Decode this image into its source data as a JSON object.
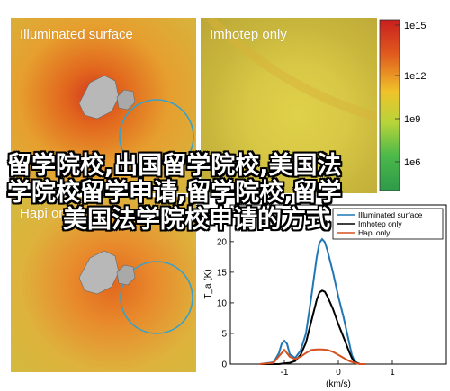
{
  "panels": {
    "top_left_title": "Illuminated surface",
    "top_right_title": "Imhotep only",
    "bottom_left_title": "Hapi only"
  },
  "colorbar": {
    "tick_labels": [
      "1e15",
      "1e12",
      "1e9",
      "1e6"
    ]
  },
  "overlay_text": {
    "line1": "留学院校,出国留学院校,美国法",
    "line2": "学院校留学申请,留学院校,留学",
    "line3": "美国法学院校申请的方式"
  },
  "chart_data": {
    "type": "line",
    "xlabel": "(km/s)",
    "ylabel": "T_a (K)",
    "xticks": [
      "-1",
      "0",
      "1"
    ],
    "yticks": [
      "0",
      "5",
      "10",
      "15",
      "20",
      "25"
    ],
    "xlim": [
      -2.0,
      2.0
    ],
    "ylim": [
      0,
      26
    ],
    "legend_position": "top-right",
    "series": [
      {
        "name": "Illuminated surface",
        "color": "#1f77b4",
        "x": [
          -1.45,
          -1.2,
          -1.1,
          -1.05,
          -1.0,
          -0.95,
          -0.9,
          -0.8,
          -0.7,
          -0.6,
          -0.5,
          -0.4,
          -0.35,
          -0.3,
          -0.25,
          -0.2,
          -0.1,
          0.0,
          0.1,
          0.2,
          0.25,
          0.3,
          0.35,
          0.4,
          0.5
        ],
        "y": [
          0,
          0.3,
          1.8,
          3.3,
          3.8,
          3.3,
          1.6,
          1.0,
          2.2,
          5.0,
          11.0,
          17.5,
          19.8,
          20.4,
          19.9,
          18.5,
          15.0,
          11.0,
          7.5,
          3.5,
          1.5,
          0.5,
          0.2,
          0,
          0
        ]
      },
      {
        "name": "Imhotep only",
        "color": "#000000",
        "x": [
          -1.45,
          -1.2,
          -1.1,
          -1.0,
          -0.9,
          -0.8,
          -0.7,
          -0.6,
          -0.5,
          -0.4,
          -0.35,
          -0.3,
          -0.25,
          -0.2,
          -0.1,
          0.0,
          0.1,
          0.2,
          0.25,
          0.3,
          0.4,
          0.5
        ],
        "y": [
          0,
          0,
          0,
          0.1,
          0.2,
          0.5,
          1.5,
          3.5,
          7.0,
          10.5,
          11.7,
          12.0,
          11.8,
          11.0,
          9.0,
          6.5,
          4.3,
          2.0,
          1.0,
          0.3,
          0,
          0
        ]
      },
      {
        "name": "Hapi only",
        "color": "#d6501e",
        "x": [
          -1.45,
          -1.2,
          -1.1,
          -1.0,
          -0.9,
          -0.8,
          -0.7,
          -0.6,
          -0.5,
          -0.4,
          -0.3,
          -0.2,
          -0.1,
          0.0,
          0.1,
          0.2,
          0.3,
          0.4,
          0.5
        ],
        "y": [
          0,
          0.2,
          1.3,
          2.3,
          1.2,
          0.8,
          1.2,
          1.8,
          2.3,
          2.4,
          2.4,
          2.3,
          2.0,
          1.5,
          1.0,
          0.5,
          0.2,
          0,
          0
        ]
      }
    ]
  }
}
